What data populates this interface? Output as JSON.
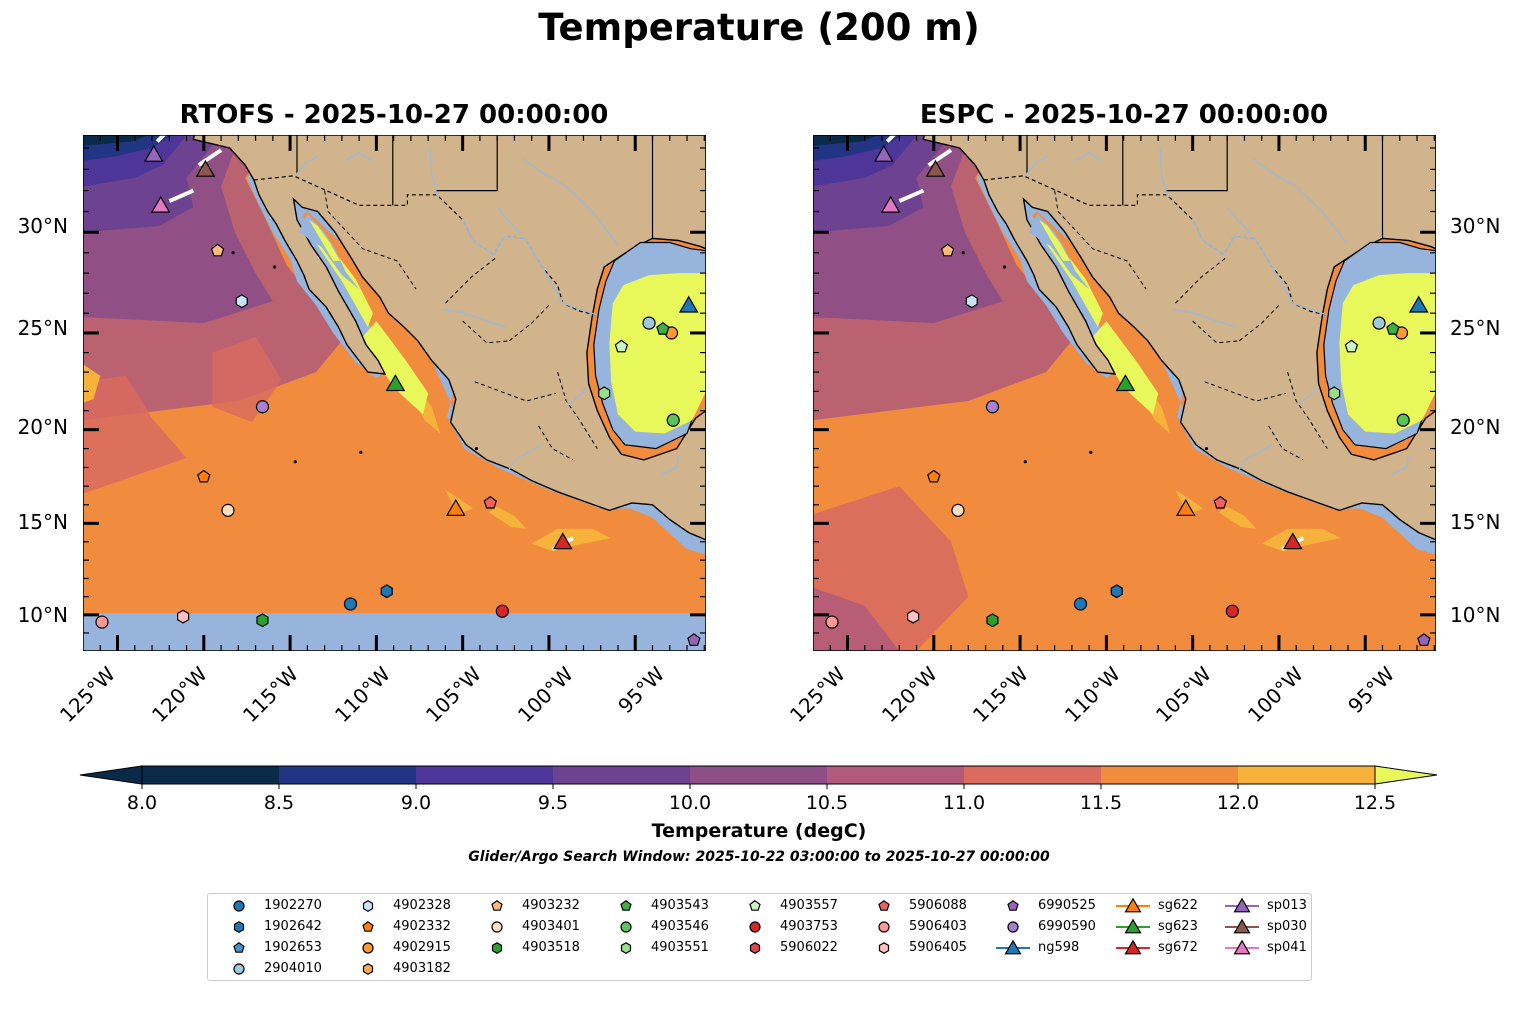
{
  "title": "Temperature (200 m)",
  "panels": [
    {
      "name": "rtofs",
      "title": "RTOFS - 2025-10-27 00:00:00"
    },
    {
      "name": "espc",
      "title": "ESPC - 2025-10-27 00:00:00"
    }
  ],
  "lat_ticks": [
    "30°N",
    "25°N",
    "20°N",
    "15°N",
    "10°N"
  ],
  "lon_ticks": [
    "125°W",
    "120°W",
    "115°W",
    "110°W",
    "105°W",
    "100°W",
    "95°W"
  ],
  "colorbar": {
    "label": "Temperature (degC)",
    "ticks": [
      "8.0",
      "8.5",
      "9.0",
      "9.5",
      "10.0",
      "10.5",
      "11.0",
      "11.5",
      "12.0",
      "12.5"
    ],
    "colors": [
      "#0a2a4a",
      "#213584",
      "#4e3598",
      "#6d4290",
      "#8e4f86",
      "#b25a7a",
      "#d96b5f",
      "#f18c3f",
      "#f7b23b",
      "#e8f85a"
    ]
  },
  "search_window": "Glider/Argo Search Window: 2025-10-22 03:00:00 to 2025-10-27 00:00:00",
  "legend": [
    {
      "label": "1902270",
      "marker": "circle",
      "color": "#1f77b4"
    },
    {
      "label": "1902642",
      "marker": "hexagon",
      "color": "#1f77b4"
    },
    {
      "label": "1902653",
      "marker": "pentagon",
      "color": "#4a90c8"
    },
    {
      "label": "2904010",
      "marker": "circle",
      "color": "#9ecae1"
    },
    {
      "label": "4902328",
      "marker": "hexagon",
      "color": "#c6e5f5"
    },
    {
      "label": "4902332",
      "marker": "pentagon",
      "color": "#ff7f0e"
    },
    {
      "label": "4902915",
      "marker": "circle",
      "color": "#ff9933"
    },
    {
      "label": "4903182",
      "marker": "hexagon",
      "color": "#ffaa55"
    },
    {
      "label": "4903232",
      "marker": "pentagon",
      "color": "#ffbb78"
    },
    {
      "label": "4903401",
      "marker": "circle",
      "color": "#ffddc0"
    },
    {
      "label": "4903518",
      "marker": "hexagon",
      "color": "#2ca02c"
    },
    {
      "label": "4903543",
      "marker": "pentagon",
      "color": "#3cb043"
    },
    {
      "label": "4903546",
      "marker": "circle",
      "color": "#5cc25c"
    },
    {
      "label": "4903551",
      "marker": "hexagon",
      "color": "#98df8a"
    },
    {
      "label": "4903557",
      "marker": "pentagon",
      "color": "#c8f5c0"
    },
    {
      "label": "4903753",
      "marker": "circle",
      "color": "#d62728"
    },
    {
      "label": "5906022",
      "marker": "hexagon",
      "color": "#e0474c"
    },
    {
      "label": "5906088",
      "marker": "pentagon",
      "color": "#f06060"
    },
    {
      "label": "5906403",
      "marker": "circle",
      "color": "#ff9896"
    },
    {
      "label": "5906405",
      "marker": "hexagon",
      "color": "#ffc0c0"
    },
    {
      "label": "6990525",
      "marker": "pentagon",
      "color": "#9467bd"
    },
    {
      "label": "6990590",
      "marker": "circle",
      "color": "#a97fd0"
    },
    {
      "label": "ng598",
      "marker": "triangle",
      "color": "#1f77b4"
    },
    {
      "label": "sg622",
      "marker": "triangle",
      "color": "#ff7f0e"
    },
    {
      "label": "sg623",
      "marker": "triangle",
      "color": "#2ca02c"
    },
    {
      "label": "sg672",
      "marker": "triangle",
      "color": "#d62728"
    },
    {
      "label": "sp013",
      "marker": "triangle",
      "color": "#9467bd"
    },
    {
      "label": "sp030",
      "marker": "triangle",
      "color": "#8c564b"
    },
    {
      "label": "sp041",
      "marker": "triangle",
      "color": "#e377c2"
    }
  ],
  "platform_positions": [
    {
      "label": "1902270",
      "lon": -111.5,
      "lat": 10.6
    },
    {
      "label": "1902642",
      "lon": -109.4,
      "lat": 11.3
    },
    {
      "label": "2904010",
      "lon": -94.2,
      "lat": 25.5
    },
    {
      "label": "4902328",
      "lon": -117.8,
      "lat": 26.6
    },
    {
      "label": "4902332",
      "lon": -120.0,
      "lat": 17.5
    },
    {
      "label": "4902915",
      "lon": -92.9,
      "lat": 25.0
    },
    {
      "label": "4903232",
      "lon": -119.2,
      "lat": 29.1
    },
    {
      "label": "4903401",
      "lon": -118.6,
      "lat": 15.7
    },
    {
      "label": "4903518",
      "lon": -116.6,
      "lat": 9.7
    },
    {
      "label": "4903543",
      "lon": -93.4,
      "lat": 25.2
    },
    {
      "label": "4903546",
      "lon": -92.8,
      "lat": 20.5
    },
    {
      "label": "4903551",
      "lon": -96.8,
      "lat": 21.9
    },
    {
      "label": "4903557",
      "lon": -95.8,
      "lat": 24.3
    },
    {
      "label": "4903753",
      "lon": -102.7,
      "lat": 10.2
    },
    {
      "label": "5906088",
      "lon": -103.4,
      "lat": 16.1
    },
    {
      "label": "5906403",
      "lon": -125.9,
      "lat": 9.6
    },
    {
      "label": "5906405",
      "lon": -121.2,
      "lat": 9.9
    },
    {
      "label": "6990525",
      "lon": -91.6,
      "lat": 8.6
    },
    {
      "label": "6990590",
      "lon": -116.6,
      "lat": 21.2
    },
    {
      "label": "ng598",
      "lon": -91.9,
      "lat": 26.4
    },
    {
      "label": "sg622",
      "lon": -105.4,
      "lat": 15.8
    },
    {
      "label": "sg623",
      "lon": -108.9,
      "lat": 22.4
    },
    {
      "label": "sg672",
      "lon": -99.2,
      "lat": 14.0
    },
    {
      "label": "sp013",
      "lon": -122.9,
      "lat": 33.7
    },
    {
      "label": "sp030",
      "lon": -119.9,
      "lat": 33.0
    },
    {
      "label": "sp041",
      "lon": -122.5,
      "lat": 31.3
    }
  ]
}
